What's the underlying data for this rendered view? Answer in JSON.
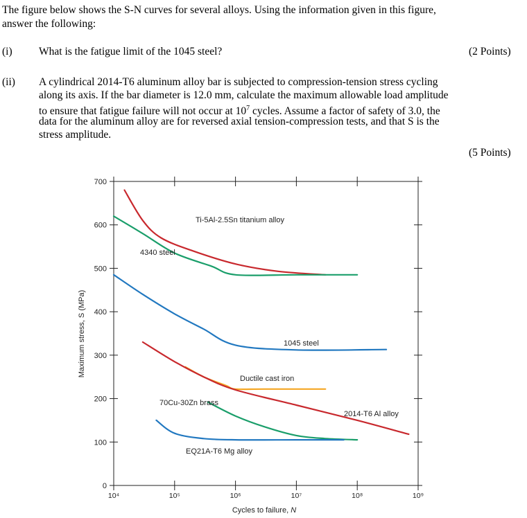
{
  "problem": {
    "intro": [
      "The figure below shows the S-N curves for several alloys.  Using the information given in this figure,",
      "answer the following:"
    ],
    "q1": {
      "num": "(i)",
      "text": "What is the fatigue limit of the 1045 steel?",
      "points": "(2 Points)"
    },
    "q2": {
      "num": "(ii)",
      "lines": [
        "A cylindrical 2014-T6 aluminum alloy bar is subjected to compression-tension stress cycling",
        "along its axis.  If the bar diameter is 12.0 mm, calculate the maximum allowable load amplitude",
        "to ensure that fatigue failure will not occur at 10^7 cycles.  Assume a factor of safety of 3.0, the",
        "data for the aluminum alloy are for reversed axial tension-compression tests, and that S is the",
        "stress amplitude."
      ],
      "points": "(5 Points)"
    }
  },
  "chart_data": {
    "type": "line",
    "title": "",
    "xlabel": "Cycles to failure, N",
    "ylabel": "Maximum stress, S (MPa)",
    "xscale": "log",
    "xlim": [
      10000,
      1000000000
    ],
    "ylim": [
      0,
      700
    ],
    "xtick_labels": [
      "10⁴",
      "10⁵",
      "10⁶",
      "10⁷",
      "10⁸",
      "10⁹"
    ],
    "ytick_labels": [
      "0",
      "100",
      "200",
      "300",
      "400",
      "500",
      "600",
      "700"
    ],
    "grid": false,
    "series": [
      {
        "name": "Ti-5Al-2.5Sn titanium alloy",
        "color": "#c8282d",
        "x": [
          15000,
          30000,
          60000,
          200000,
          1000000,
          5000000,
          30000000
        ],
        "y": [
          680,
          610,
          570,
          540,
          510,
          493,
          485
        ]
      },
      {
        "name": "4340 steel",
        "color": "#1a9e6a",
        "x": [
          10000,
          30000,
          100000,
          400000,
          1000000,
          10000000,
          100000000
        ],
        "y": [
          620,
          580,
          535,
          505,
          485,
          485,
          485
        ]
      },
      {
        "name": "1045 steel",
        "color": "#2178c0",
        "x": [
          10000,
          30000,
          100000,
          300000,
          1000000,
          10000000,
          300000000
        ],
        "y": [
          485,
          440,
          395,
          360,
          323,
          312,
          313
        ]
      },
      {
        "name": "Ductile cast iron",
        "color": "#f5a623",
        "x": [
          150000,
          300000,
          700000,
          1000000,
          3000000,
          30000000
        ],
        "y": [
          273,
          250,
          230,
          222,
          222,
          222
        ]
      },
      {
        "name": "2014-T6 Al alloy",
        "color": "#c8282d",
        "x": [
          30000,
          100000,
          300000,
          1000000,
          10000000,
          100000000,
          700000000
        ],
        "y": [
          330,
          285,
          250,
          220,
          185,
          150,
          118
        ]
      },
      {
        "name": "70Cu-30Zn brass",
        "color": "#1a9e6a",
        "x": [
          350000,
          1000000,
          3000000,
          10000000,
          30000000,
          100000000
        ],
        "y": [
          192,
          160,
          135,
          115,
          108,
          105
        ]
      },
      {
        "name": "EQ21A-T6 Mg alloy",
        "color": "#2178c0",
        "x": [
          50000,
          100000,
          300000,
          1000000,
          10000000,
          60000000
        ],
        "y": [
          150,
          120,
          108,
          105,
          105,
          105
        ]
      }
    ]
  }
}
